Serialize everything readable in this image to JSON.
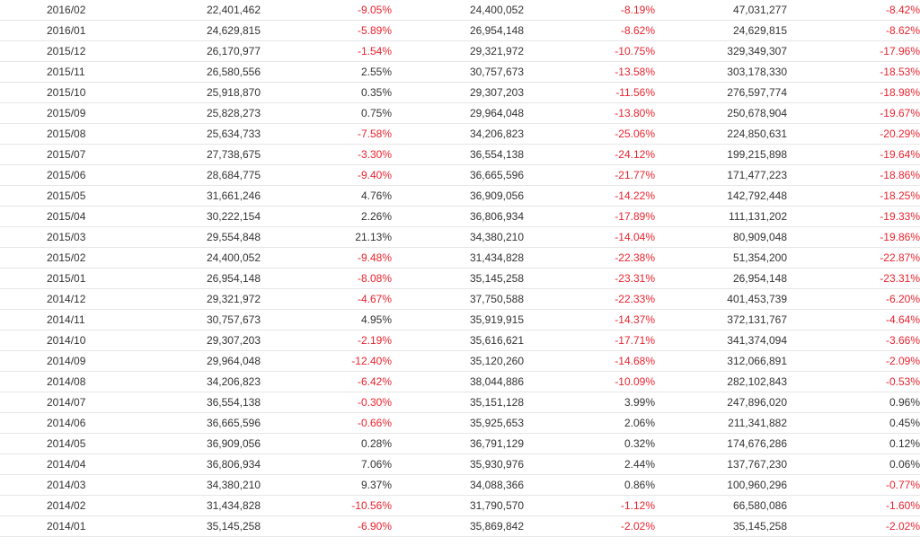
{
  "rows": [
    {
      "month": "2016/02",
      "v1": "22,401,462",
      "p1": "-9.05%",
      "v2": "24,400,052",
      "p2": "-8.19%",
      "v3": "47,031,277",
      "p3": "-8.42%"
    },
    {
      "month": "2016/01",
      "v1": "24,629,815",
      "p1": "-5.89%",
      "v2": "26,954,148",
      "p2": "-8.62%",
      "v3": "24,629,815",
      "p3": "-8.62%"
    },
    {
      "month": "2015/12",
      "v1": "26,170,977",
      "p1": "-1.54%",
      "v2": "29,321,972",
      "p2": "-10.75%",
      "v3": "329,349,307",
      "p3": "-17.96%"
    },
    {
      "month": "2015/11",
      "v1": "26,580,556",
      "p1": "2.55%",
      "v2": "30,757,673",
      "p2": "-13.58%",
      "v3": "303,178,330",
      "p3": "-18.53%"
    },
    {
      "month": "2015/10",
      "v1": "25,918,870",
      "p1": "0.35%",
      "v2": "29,307,203",
      "p2": "-11.56%",
      "v3": "276,597,774",
      "p3": "-18.98%"
    },
    {
      "month": "2015/09",
      "v1": "25,828,273",
      "p1": "0.75%",
      "v2": "29,964,048",
      "p2": "-13.80%",
      "v3": "250,678,904",
      "p3": "-19.67%"
    },
    {
      "month": "2015/08",
      "v1": "25,634,733",
      "p1": "-7.58%",
      "v2": "34,206,823",
      "p2": "-25.06%",
      "v3": "224,850,631",
      "p3": "-20.29%"
    },
    {
      "month": "2015/07",
      "v1": "27,738,675",
      "p1": "-3.30%",
      "v2": "36,554,138",
      "p2": "-24.12%",
      "v3": "199,215,898",
      "p3": "-19.64%"
    },
    {
      "month": "2015/06",
      "v1": "28,684,775",
      "p1": "-9.40%",
      "v2": "36,665,596",
      "p2": "-21.77%",
      "v3": "171,477,223",
      "p3": "-18.86%"
    },
    {
      "month": "2015/05",
      "v1": "31,661,246",
      "p1": "4.76%",
      "v2": "36,909,056",
      "p2": "-14.22%",
      "v3": "142,792,448",
      "p3": "-18.25%"
    },
    {
      "month": "2015/04",
      "v1": "30,222,154",
      "p1": "2.26%",
      "v2": "36,806,934",
      "p2": "-17.89%",
      "v3": "111,131,202",
      "p3": "-19.33%"
    },
    {
      "month": "2015/03",
      "v1": "29,554,848",
      "p1": "21.13%",
      "v2": "34,380,210",
      "p2": "-14.04%",
      "v3": "80,909,048",
      "p3": "-19.86%"
    },
    {
      "month": "2015/02",
      "v1": "24,400,052",
      "p1": "-9.48%",
      "v2": "31,434,828",
      "p2": "-22.38%",
      "v3": "51,354,200",
      "p3": "-22.87%"
    },
    {
      "month": "2015/01",
      "v1": "26,954,148",
      "p1": "-8.08%",
      "v2": "35,145,258",
      "p2": "-23.31%",
      "v3": "26,954,148",
      "p3": "-23.31%"
    },
    {
      "month": "2014/12",
      "v1": "29,321,972",
      "p1": "-4.67%",
      "v2": "37,750,588",
      "p2": "-22.33%",
      "v3": "401,453,739",
      "p3": "-6.20%"
    },
    {
      "month": "2014/11",
      "v1": "30,757,673",
      "p1": "4.95%",
      "v2": "35,919,915",
      "p2": "-14.37%",
      "v3": "372,131,767",
      "p3": "-4.64%"
    },
    {
      "month": "2014/10",
      "v1": "29,307,203",
      "p1": "-2.19%",
      "v2": "35,616,621",
      "p2": "-17.71%",
      "v3": "341,374,094",
      "p3": "-3.66%"
    },
    {
      "month": "2014/09",
      "v1": "29,964,048",
      "p1": "-12.40%",
      "v2": "35,120,260",
      "p2": "-14.68%",
      "v3": "312,066,891",
      "p3": "-2.09%"
    },
    {
      "month": "2014/08",
      "v1": "34,206,823",
      "p1": "-6.42%",
      "v2": "38,044,886",
      "p2": "-10.09%",
      "v3": "282,102,843",
      "p3": "-0.53%"
    },
    {
      "month": "2014/07",
      "v1": "36,554,138",
      "p1": "-0.30%",
      "v2": "35,151,128",
      "p2": "3.99%",
      "v3": "247,896,020",
      "p3": "0.96%"
    },
    {
      "month": "2014/06",
      "v1": "36,665,596",
      "p1": "-0.66%",
      "v2": "35,925,653",
      "p2": "2.06%",
      "v3": "211,341,882",
      "p3": "0.45%"
    },
    {
      "month": "2014/05",
      "v1": "36,909,056",
      "p1": "0.28%",
      "v2": "36,791,129",
      "p2": "0.32%",
      "v3": "174,676,286",
      "p3": "0.12%"
    },
    {
      "month": "2014/04",
      "v1": "36,806,934",
      "p1": "7.06%",
      "v2": "35,930,976",
      "p2": "2.44%",
      "v3": "137,767,230",
      "p3": "0.06%"
    },
    {
      "month": "2014/03",
      "v1": "34,380,210",
      "p1": "9.37%",
      "v2": "34,088,366",
      "p2": "0.86%",
      "v3": "100,960,296",
      "p3": "-0.77%"
    },
    {
      "month": "2014/02",
      "v1": "31,434,828",
      "p1": "-10.56%",
      "v2": "31,790,570",
      "p2": "-1.12%",
      "v3": "66,580,086",
      "p3": "-1.60%"
    },
    {
      "month": "2014/01",
      "v1": "35,145,258",
      "p1": "-6.90%",
      "v2": "35,869,842",
      "p2": "-2.02%",
      "v3": "35,145,258",
      "p3": "-2.02%"
    }
  ],
  "colors": {
    "negative": "#e8242f",
    "positive": "#333333",
    "row_border": "#e6e6e6"
  }
}
